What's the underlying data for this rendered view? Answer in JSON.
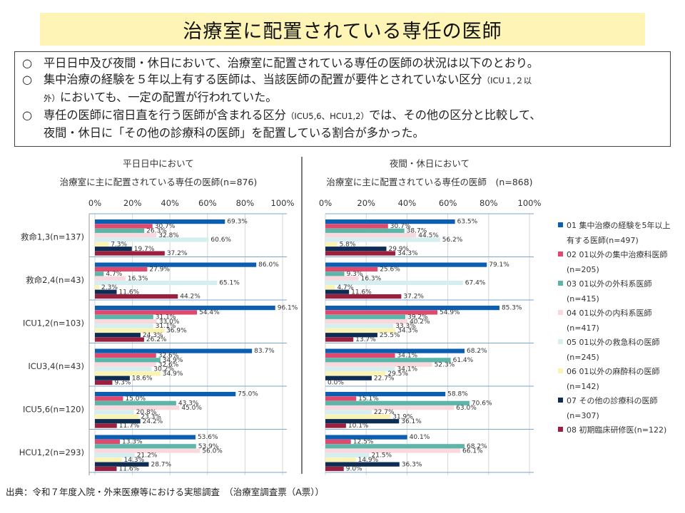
{
  "title": "治療室に配置されている専任の医師",
  "summary": {
    "mark": "○",
    "p1": "平日日中及び夜間・休日において、治療室に配置されている専任の医師の状況は以下のとおり。",
    "p2a": "集中治療の経験を５年以上有する医師は、当該医師の配置が要件とされていない区分",
    "p2b": "（ICU１,２以",
    "p2c": "外）",
    "p2d": "においても、一定の配置が行われていた。",
    "p3a": "専任の医師に宿日直を行う医師が含まれる区分",
    "p3b": "（ICU5,6、HCU1,2）",
    "p3c": "では、その他の区分と比較して、",
    "p3d": "夜間・休日に「その他の診療科の医師」を配置している割合が多かった。"
  },
  "source": "出典：令和７年度入院・外来医療等における実態調査　（治療室調査票（A票））",
  "chart_data": {
    "type": "bar",
    "orientation": "horizontal",
    "categories": [
      "救命1,3(n=137)",
      "救命2,4(n=43)",
      "ICU1,2(n=103)",
      "ICU3,4(n=43)",
      "ICU5,6(n=120)",
      "HCU1,2(n=293)"
    ],
    "xlim": [
      0,
      100
    ],
    "ticks": [
      "0%",
      "20%",
      "40%",
      "60%",
      "80%",
      "100%"
    ],
    "series_names": [
      "01 集中治療の経験を5年以上有する医師",
      "02 01以外の集中治療科医師",
      "03 01以外の外科系医師",
      "04 01以外の内科系医師",
      "05 01以外の救急科の医師",
      "06 01以外の麻酔科の医師",
      "07 その他の診療科の医師",
      "08 初期臨床研修医"
    ],
    "colors": [
      "#0b5eb0",
      "#e0486d",
      "#5bb5a8",
      "#f9d9de",
      "#d5eef0",
      "#fbf3b3",
      "#0d2d55",
      "#9b2040"
    ],
    "panels": [
      {
        "title": "平日日中において",
        "subtitle": "治療室に主に配置されている専任の医師(n=876)",
        "values": [
          [
            69.3,
            30.7,
            26.3,
            32.8,
            60.6,
            7.3,
            19.7,
            37.2
          ],
          [
            86.0,
            27.9,
            4.7,
            16.3,
            65.1,
            2.3,
            11.6,
            44.2
          ],
          [
            96.1,
            54.4,
            31.1,
            33.0,
            31.1,
            36.9,
            24.3,
            26.2
          ],
          [
            83.7,
            32.6,
            34.9,
            32.6,
            30.2,
            34.9,
            18.6,
            9.3
          ],
          [
            75.0,
            15.0,
            43.3,
            45.0,
            20.8,
            23.3,
            24.2,
            11.7
          ],
          [
            53.6,
            13.3,
            53.9,
            56.0,
            21.2,
            14.3,
            28.7,
            11.6
          ]
        ]
      },
      {
        "title": "夜間・休日において",
        "subtitle": "治療室に主に配置されている専任の医師　(n=868)",
        "values": [
          [
            63.5,
            30.7,
            38.7,
            44.5,
            56.2,
            5.8,
            29.9,
            34.3
          ],
          [
            79.1,
            25.6,
            9.3,
            16.3,
            67.4,
            4.7,
            11.6,
            37.2
          ],
          [
            85.3,
            54.9,
            39.2,
            40.2,
            33.3,
            34.3,
            25.5,
            13.7
          ],
          [
            68.2,
            34.1,
            61.4,
            52.3,
            34.1,
            29.5,
            22.7,
            0.0
          ],
          [
            58.8,
            15.1,
            70.6,
            63.0,
            22.7,
            31.9,
            36.1,
            10.1
          ],
          [
            40.1,
            12.5,
            68.2,
            66.1,
            21.5,
            14.9,
            36.3,
            9.0
          ]
        ]
      }
    ],
    "legend": [
      {
        "line1": "01 集中治療の経験を5年以上",
        "line2": "有する医師(n=497)"
      },
      {
        "line1": "02 01以外の集中治療科医師",
        "line2": "(n=205)"
      },
      {
        "line1": "03 01以外の外科系医師",
        "line2": "(n=415)"
      },
      {
        "line1": "04 01以外の内科系医師",
        "line2": "(n=417)"
      },
      {
        "line1": "05 01以外の救急科の医師",
        "line2": "(n=245)"
      },
      {
        "line1": "06 01以外の麻酔科の医師",
        "line2": "(n=142)"
      },
      {
        "line1": "07 その他の診療科の医師",
        "line2": "(n=307)"
      },
      {
        "line1": "08 初期臨床研修医(n=122)",
        "line2": ""
      }
    ]
  }
}
